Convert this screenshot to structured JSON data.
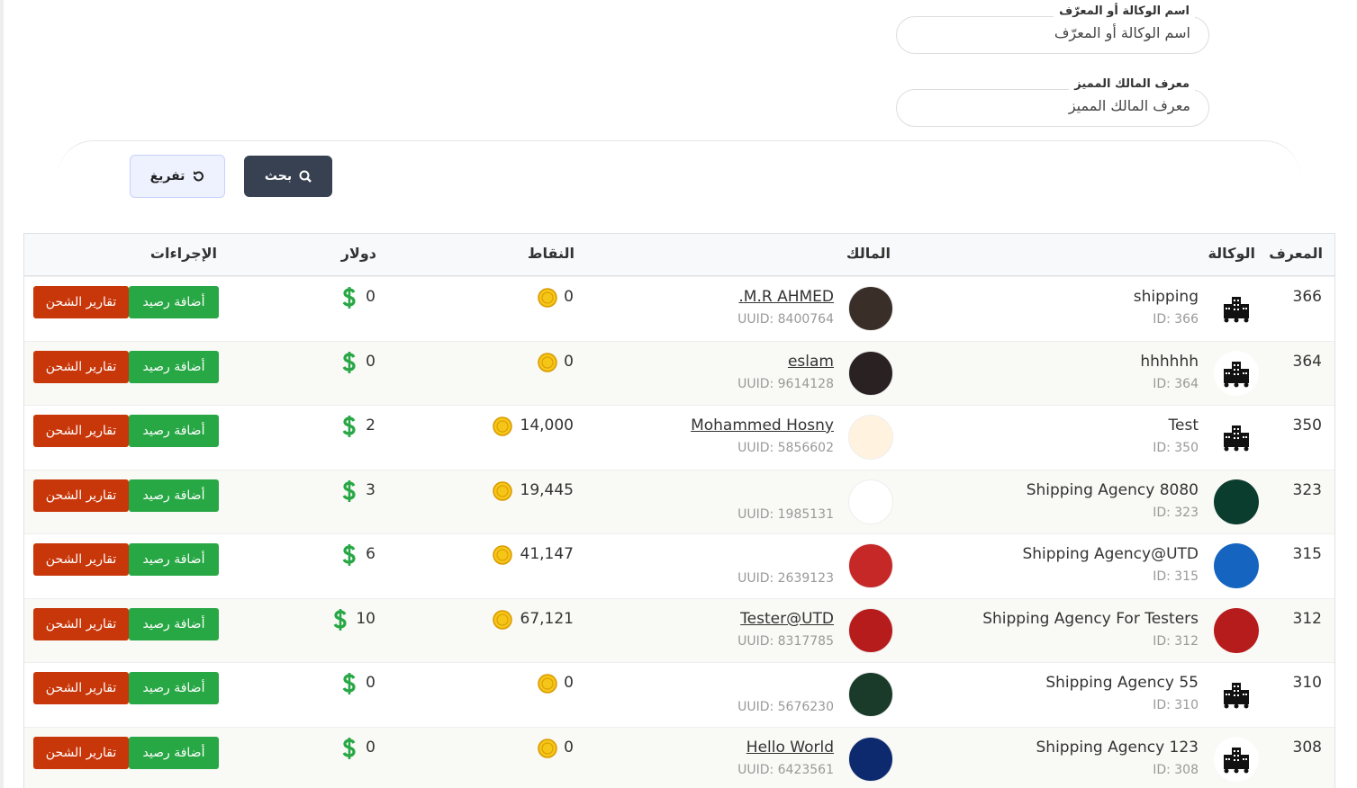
{
  "filters": [
    {
      "label": "اسم الوكالة أو المعرّف",
      "placeholder": "اسم الوكالة أو المعرّف"
    },
    {
      "label": "معرف المالك المميز",
      "placeholder": "معرف المالك المميز"
    }
  ],
  "buttons": {
    "search": "بحث",
    "reset": "تفريغ"
  },
  "table": {
    "headers": [
      "المعرف",
      "الوكالة",
      "المالك",
      "النقاط",
      "دولار",
      "الإجراءات"
    ],
    "actions": {
      "add": "أضافة رصيد",
      "report": "تقارير الشحن"
    },
    "rows": [
      {
        "id": "366",
        "agency": "shipping",
        "agency_id": "ID: 366",
        "owner": "M.R AHMED.",
        "uuid": "UUID: 8400764",
        "points": "0",
        "dollars": "0"
      },
      {
        "id": "364",
        "agency": "hhhhhh",
        "agency_id": "ID: 364",
        "owner": "eslam",
        "uuid": "UUID: 9614128",
        "points": "0",
        "dollars": "0"
      },
      {
        "id": "350",
        "agency": "Test",
        "agency_id": "ID: 350",
        "owner": "Mohammed Hosny",
        "uuid": "UUID: 5856602",
        "points": "14,000",
        "dollars": "2"
      },
      {
        "id": "323",
        "agency": "Shipping Agency 8080",
        "agency_id": "ID: 323",
        "owner": null,
        "uuid": "UUID: 1985131",
        "points": "19,445",
        "dollars": "3"
      },
      {
        "id": "315",
        "agency": "Shipping Agency@UTD",
        "agency_id": "ID: 315",
        "owner": null,
        "uuid": "UUID: 2639123",
        "points": "41,147",
        "dollars": "6"
      },
      {
        "id": "312",
        "agency": "Shipping Agency For Testers",
        "agency_id": "ID: 312",
        "owner": "Tester@UTD",
        "uuid": "UUID: 8317785",
        "points": "67,121",
        "dollars": "10"
      },
      {
        "id": "310",
        "agency": "Shipping Agency 55",
        "agency_id": "ID: 310",
        "owner": null,
        "uuid": "UUID: 5676230",
        "points": "0",
        "dollars": "0"
      },
      {
        "id": "308",
        "agency": "Shipping Agency 123",
        "agency_id": "ID: 308",
        "owner": "Hello World",
        "uuid": "UUID: 6423561",
        "points": "0",
        "dollars": "0"
      }
    ]
  }
}
